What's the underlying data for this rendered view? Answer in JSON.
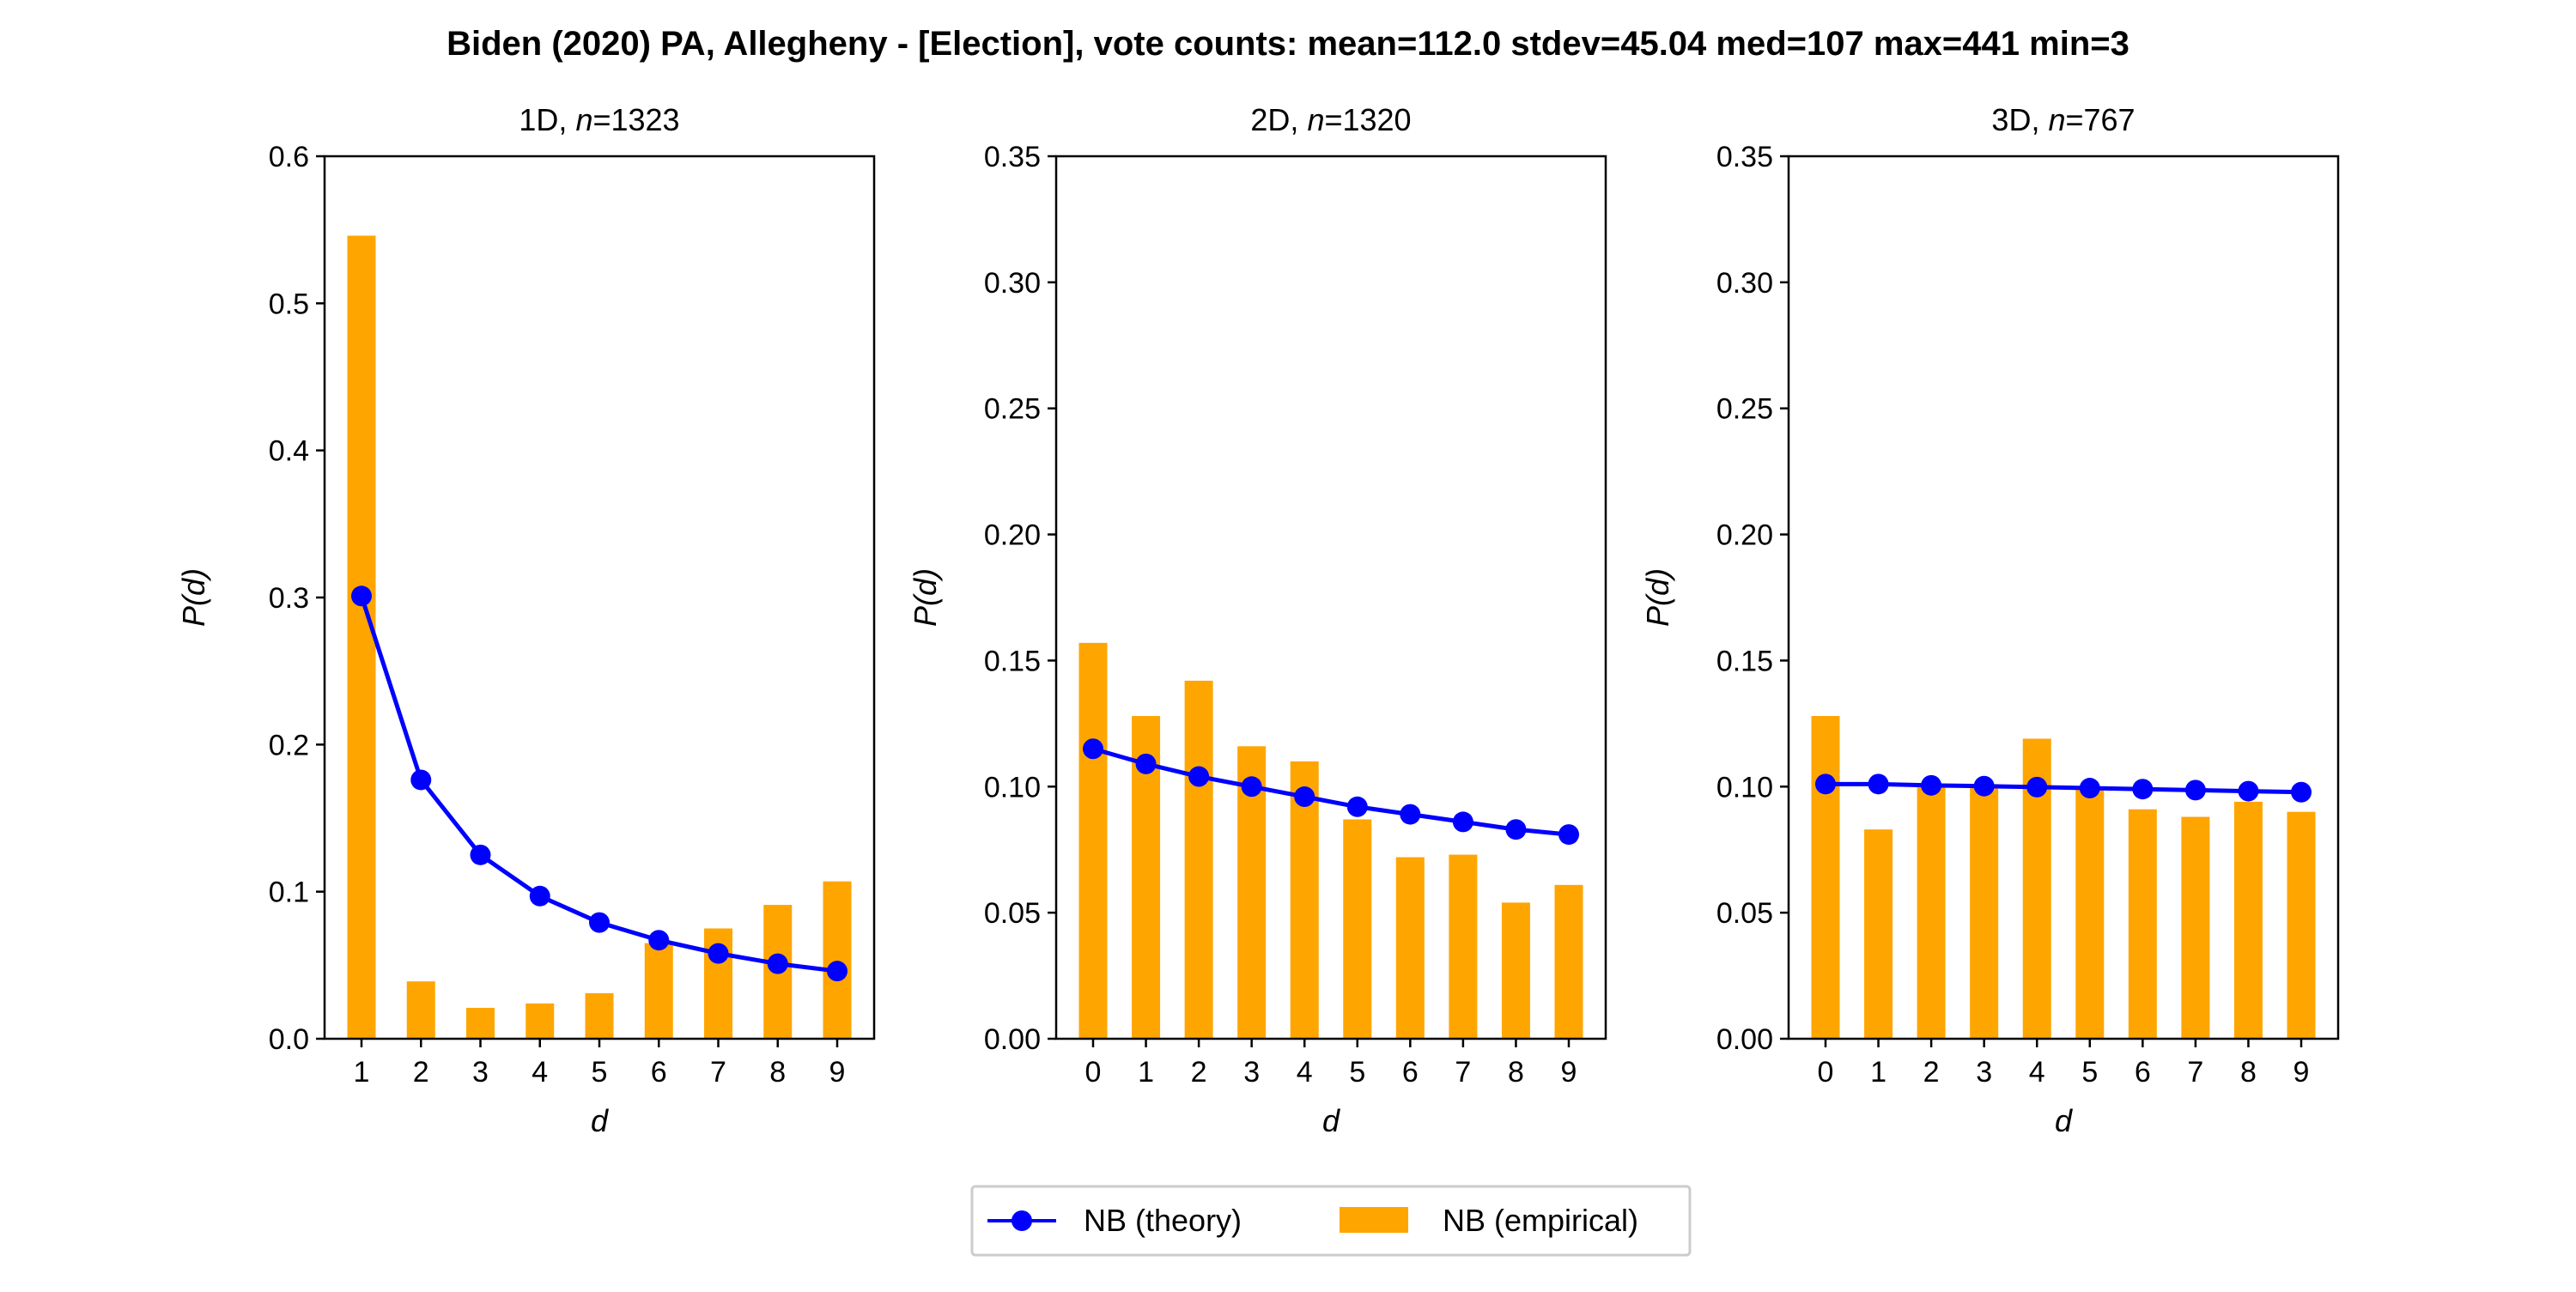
{
  "figure": {
    "suptitle": "Biden (2020) PA, Allegheny - [Election], vote counts: mean=112.0 stdev=45.04 med=107 max=441 min=3"
  },
  "colors": {
    "theory": "#0000ff",
    "empirical": "#ffa500"
  },
  "legend": {
    "placement": "bottom-center",
    "theory_label": "NB (theory)",
    "empirical_label": "NB (empirical)"
  },
  "chart_data": [
    {
      "type": "bar",
      "title_prefix": "1D, ",
      "title_n_label": "n",
      "title_n_value": "=1323",
      "xlabel": "d",
      "ylabel_prefix": "P(",
      "ylabel_var": "d",
      "ylabel_suffix": ")",
      "ylim": [
        0,
        0.6
      ],
      "yticks": [
        "0.0",
        "0.1",
        "0.2",
        "0.3",
        "0.4",
        "0.5",
        "0.6"
      ],
      "ytick_values": [
        0,
        0.1,
        0.2,
        0.3,
        0.4,
        0.5,
        0.6
      ],
      "categories": [
        "1",
        "2",
        "3",
        "4",
        "5",
        "6",
        "7",
        "8",
        "9"
      ],
      "series": [
        {
          "name": "NB (empirical)",
          "kind": "bar",
          "values": [
            0.546,
            0.039,
            0.021,
            0.024,
            0.031,
            0.065,
            0.075,
            0.091,
            0.107
          ]
        },
        {
          "name": "NB (theory)",
          "kind": "line",
          "values": [
            0.301,
            0.176,
            0.125,
            0.097,
            0.079,
            0.067,
            0.058,
            0.051,
            0.046
          ]
        }
      ]
    },
    {
      "type": "bar",
      "title_prefix": "2D, ",
      "title_n_label": "n",
      "title_n_value": "=1320",
      "xlabel": "d",
      "ylabel_prefix": "P(",
      "ylabel_var": "d",
      "ylabel_suffix": ")",
      "ylim": [
        0,
        0.35
      ],
      "yticks": [
        "0.00",
        "0.05",
        "0.10",
        "0.15",
        "0.20",
        "0.25",
        "0.30",
        "0.35"
      ],
      "ytick_values": [
        0,
        0.05,
        0.1,
        0.15,
        0.2,
        0.25,
        0.3,
        0.35
      ],
      "categories": [
        "0",
        "1",
        "2",
        "3",
        "4",
        "5",
        "6",
        "7",
        "8",
        "9"
      ],
      "series": [
        {
          "name": "NB (empirical)",
          "kind": "bar",
          "values": [
            0.157,
            0.128,
            0.142,
            0.116,
            0.11,
            0.087,
            0.072,
            0.073,
            0.054,
            0.061
          ]
        },
        {
          "name": "NB (theory)",
          "kind": "line",
          "values": [
            0.115,
            0.109,
            0.104,
            0.1,
            0.096,
            0.092,
            0.089,
            0.086,
            0.083,
            0.081
          ]
        }
      ]
    },
    {
      "type": "bar",
      "title_prefix": "3D, ",
      "title_n_label": "n",
      "title_n_value": "=767",
      "xlabel": "d",
      "ylabel_prefix": "P(",
      "ylabel_var": "d",
      "ylabel_suffix": ")",
      "ylim": [
        0,
        0.35
      ],
      "yticks": [
        "0.00",
        "0.05",
        "0.10",
        "0.15",
        "0.20",
        "0.25",
        "0.30",
        "0.35"
      ],
      "ytick_values": [
        0,
        0.05,
        0.1,
        0.15,
        0.2,
        0.25,
        0.3,
        0.35
      ],
      "categories": [
        "0",
        "1",
        "2",
        "3",
        "4",
        "5",
        "6",
        "7",
        "8",
        "9"
      ],
      "series": [
        {
          "name": "NB (empirical)",
          "kind": "bar",
          "values": [
            0.128,
            0.083,
            0.1,
            0.101,
            0.119,
            0.099,
            0.091,
            0.088,
            0.094,
            0.09
          ]
        },
        {
          "name": "NB (theory)",
          "kind": "line",
          "values": [
            0.101,
            0.101,
            0.1005,
            0.1002,
            0.0998,
            0.0994,
            0.099,
            0.0986,
            0.0982,
            0.0978
          ]
        }
      ]
    }
  ]
}
